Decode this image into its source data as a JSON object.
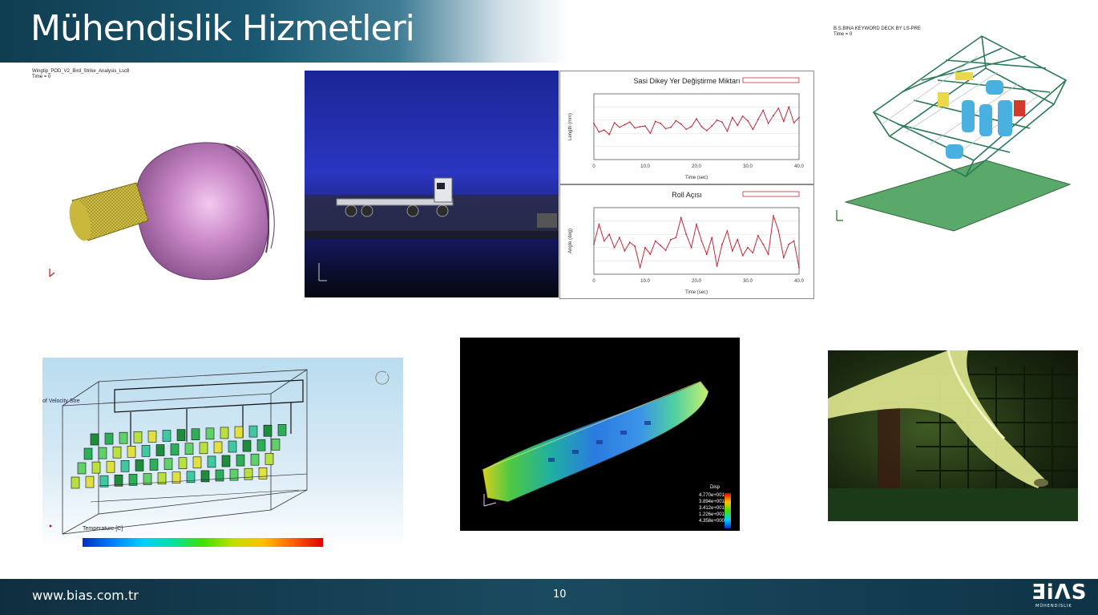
{
  "page": {
    "title": "Mühendislik Hizmetleri"
  },
  "footer": {
    "url": "www.bias.com.tr",
    "page_number": "10",
    "logo_main": "ƎiΛS",
    "logo_sub": "MÜHENDISLIK"
  },
  "images": {
    "strike": {
      "caption": "Wingtip_POD_V2_Bird_Strike_Analysis_Lsc8",
      "time_label": "Time =       0"
    },
    "rollover": {
      "caption": "B.S.BINA KEYWORD DECK BY LS-PRE",
      "time_label": "Time =       0"
    },
    "thermal": {
      "legend_title": "Temperature [C]",
      "side_label": "of Velocity Stre"
    },
    "fea": {
      "legend_title": "Disp",
      "legend_values": [
        "4.770e+001",
        "3.894e+001",
        "3.412e+001",
        "1.226e+001",
        "4.358e+000"
      ]
    }
  },
  "chart_data": [
    {
      "type": "line",
      "title": "Sasi Dikey Yer Değiştirme Miktarı",
      "xlabel": "Time (sec)",
      "ylabel": "Length (mm)",
      "x_ticks": [
        "0",
        "10.0",
        "20.0",
        "30.0",
        "40.0"
      ],
      "xlim": [
        0,
        40
      ],
      "ylim": [
        0,
        10
      ],
      "series": [
        {
          "x": [
            0,
            1,
            2,
            3,
            4,
            5,
            6,
            7,
            8,
            9,
            10,
            11,
            12,
            13,
            14,
            15,
            16,
            17,
            18,
            19,
            20,
            21,
            22,
            23,
            24,
            25,
            26,
            27,
            28,
            29,
            30,
            31,
            32,
            33,
            34,
            35,
            36,
            37,
            38,
            39,
            40
          ],
          "values": [
            5.5,
            4.2,
            4.5,
            3.8,
            5.6,
            4.9,
            5.3,
            5.7,
            4.8,
            5.0,
            5.1,
            4.0,
            5.8,
            5.5,
            4.7,
            4.9,
            5.9,
            5.4,
            4.6,
            5.0,
            6.2,
            5.0,
            4.4,
            5.1,
            6.0,
            5.7,
            4.3,
            6.4,
            5.2,
            6.6,
            5.9,
            4.6,
            6.1,
            7.5,
            5.5,
            6.7,
            7.8,
            5.8,
            8.0,
            5.6,
            6.4
          ]
        }
      ]
    },
    {
      "type": "line",
      "title": "Roll Açısı",
      "xlabel": "Time (sec)",
      "ylabel": "Angle (deg)",
      "x_ticks": [
        "0",
        "10.0",
        "20.0",
        "30.0",
        "40.0"
      ],
      "xlim": [
        0,
        40
      ],
      "ylim": [
        0,
        10
      ],
      "series": [
        {
          "x": [
            0,
            1,
            2,
            3,
            4,
            5,
            6,
            7,
            8,
            9,
            10,
            11,
            12,
            13,
            14,
            15,
            16,
            17,
            18,
            19,
            20,
            21,
            22,
            23,
            24,
            25,
            26,
            27,
            28,
            29,
            30,
            31,
            32,
            33,
            34,
            35,
            36,
            37,
            38,
            39,
            40
          ],
          "values": [
            4.5,
            7.5,
            5.0,
            6.0,
            4.0,
            5.5,
            3.5,
            4.8,
            4.2,
            1.0,
            4.0,
            3.0,
            5.0,
            4.3,
            3.6,
            5.2,
            5.5,
            8.5,
            6.0,
            4.0,
            7.5,
            5.0,
            3.0,
            5.5,
            1.2,
            4.5,
            6.5,
            3.5,
            5.2,
            2.8,
            4.0,
            3.2,
            5.8,
            4.5,
            3.0,
            8.8,
            6.5,
            2.5,
            4.5,
            5.0,
            1.0
          ]
        }
      ]
    }
  ]
}
